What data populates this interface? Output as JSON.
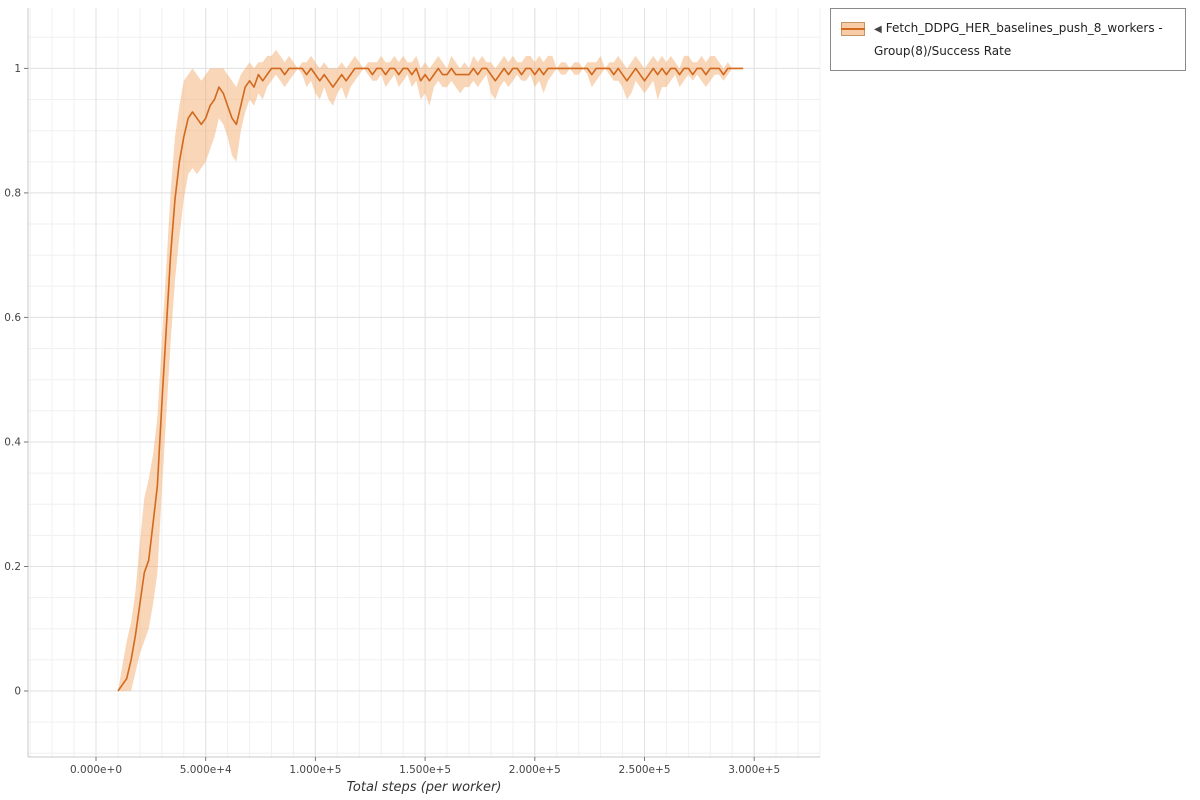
{
  "page": {
    "background": "#ffffff"
  },
  "legend": {
    "collapse_icon": "◀",
    "items": [
      {
        "label": "Fetch_DDPG_HER_baselines_push_8_workers - Group(8)/Success Rate",
        "line_color": "#d2691e",
        "band_color": "#f0a35f"
      }
    ]
  },
  "chart_data": {
    "type": "line",
    "title": "",
    "xlabel": "Total steps (per worker)",
    "ylabel": "",
    "legend_position": "outside-top-right",
    "grid": {
      "on": true,
      "minor_color": "#f0f0f0",
      "major_color": "#e2e2e2"
    },
    "x_axis": {
      "label": "Total steps (per worker)",
      "range": [
        -31000,
        330000
      ],
      "minor_step": 10000,
      "ticks": [
        {
          "v": 0,
          "label": "0.000e+0"
        },
        {
          "v": 50000,
          "label": "5.000e+4"
        },
        {
          "v": 100000,
          "label": "1.000e+5"
        },
        {
          "v": 150000,
          "label": "1.500e+5"
        },
        {
          "v": 200000,
          "label": "2.000e+5"
        },
        {
          "v": 250000,
          "label": "2.500e+5"
        },
        {
          "v": 300000,
          "label": "3.000e+5"
        }
      ]
    },
    "y_axis": {
      "label": "",
      "range": [
        -0.106,
        1.097
      ],
      "minor_step": 0.05,
      "ticks": [
        {
          "v": 0,
          "label": "0"
        },
        {
          "v": 0.2,
          "label": "0.2"
        },
        {
          "v": 0.4,
          "label": "0.4"
        },
        {
          "v": 0.6,
          "label": "0.6"
        },
        {
          "v": 0.8,
          "label": "0.8"
        },
        {
          "v": 1,
          "label": "1"
        }
      ]
    },
    "series": [
      {
        "name": "Fetch_DDPG_HER_baselines_push_8_workers - Group(8)/Success Rate",
        "color": "#d2691e",
        "band_color": "#f0a35f",
        "band_opacity": 0.45,
        "points_format": [
          "x",
          "mean",
          "band_low",
          "band_high"
        ],
        "points": [
          [
            10000,
            0.0,
            0.0,
            0.0
          ],
          [
            12000,
            0.01,
            0.0,
            0.04
          ],
          [
            14000,
            0.02,
            0.0,
            0.08
          ],
          [
            16000,
            0.05,
            0.0,
            0.11
          ],
          [
            18000,
            0.09,
            0.03,
            0.16
          ],
          [
            20000,
            0.14,
            0.06,
            0.24
          ],
          [
            22000,
            0.19,
            0.08,
            0.31
          ],
          [
            24000,
            0.21,
            0.1,
            0.34
          ],
          [
            26000,
            0.27,
            0.14,
            0.38
          ],
          [
            28000,
            0.33,
            0.19,
            0.44
          ],
          [
            30000,
            0.46,
            0.32,
            0.56
          ],
          [
            32000,
            0.58,
            0.44,
            0.68
          ],
          [
            34000,
            0.7,
            0.56,
            0.8
          ],
          [
            36000,
            0.79,
            0.66,
            0.89
          ],
          [
            38000,
            0.85,
            0.73,
            0.94
          ],
          [
            40000,
            0.89,
            0.79,
            0.98
          ],
          [
            42000,
            0.92,
            0.83,
            0.99
          ],
          [
            44000,
            0.93,
            0.84,
            1.0
          ],
          [
            46000,
            0.92,
            0.83,
            0.99
          ],
          [
            48000,
            0.91,
            0.84,
            0.98
          ],
          [
            50000,
            0.92,
            0.85,
            0.99
          ],
          [
            52000,
            0.94,
            0.87,
            1.0
          ],
          [
            54000,
            0.95,
            0.89,
            1.0
          ],
          [
            56000,
            0.97,
            0.92,
            1.0
          ],
          [
            58000,
            0.96,
            0.91,
            1.0
          ],
          [
            60000,
            0.94,
            0.89,
            0.99
          ],
          [
            62000,
            0.92,
            0.86,
            0.98
          ],
          [
            64000,
            0.91,
            0.85,
            0.97
          ],
          [
            66000,
            0.94,
            0.9,
            0.99
          ],
          [
            68000,
            0.97,
            0.93,
            1.0
          ],
          [
            70000,
            0.98,
            0.95,
            1.01
          ],
          [
            72000,
            0.97,
            0.94,
            1.0
          ],
          [
            74000,
            0.99,
            0.96,
            1.01
          ],
          [
            76000,
            0.98,
            0.95,
            1.01
          ],
          [
            78000,
            0.99,
            0.97,
            1.02
          ],
          [
            80000,
            1.0,
            0.98,
            1.02
          ],
          [
            82000,
            1.0,
            0.99,
            1.03
          ],
          [
            84000,
            1.0,
            0.98,
            1.02
          ],
          [
            86000,
            0.99,
            0.97,
            1.01
          ],
          [
            88000,
            1.0,
            0.98,
            1.02
          ],
          [
            90000,
            1.0,
            0.99,
            1.01
          ],
          [
            92000,
            1.0,
            1.0,
            1.0
          ],
          [
            94000,
            1.0,
            0.99,
            1.01
          ],
          [
            96000,
            0.99,
            0.97,
            1.01
          ],
          [
            98000,
            1.0,
            0.98,
            1.02
          ],
          [
            100000,
            0.99,
            0.96,
            1.01
          ],
          [
            102000,
            0.98,
            0.95,
            1.0
          ],
          [
            104000,
            0.99,
            0.97,
            1.01
          ],
          [
            106000,
            0.98,
            0.95,
            1.0
          ],
          [
            108000,
            0.97,
            0.94,
            1.0
          ],
          [
            110000,
            0.98,
            0.96,
            1.0
          ],
          [
            112000,
            0.99,
            0.97,
            1.01
          ],
          [
            114000,
            0.98,
            0.95,
            1.0
          ],
          [
            116000,
            0.99,
            0.97,
            1.01
          ],
          [
            118000,
            1.0,
            0.98,
            1.02
          ],
          [
            120000,
            1.0,
            0.99,
            1.01
          ],
          [
            122000,
            1.0,
            1.0,
            1.0
          ],
          [
            124000,
            1.0,
            0.99,
            1.01
          ],
          [
            126000,
            0.99,
            0.98,
            1.01
          ],
          [
            128000,
            1.0,
            0.98,
            1.01
          ],
          [
            130000,
            1.0,
            0.99,
            1.02
          ],
          [
            132000,
            0.99,
            0.97,
            1.01
          ],
          [
            134000,
            1.0,
            0.98,
            1.01
          ],
          [
            136000,
            1.0,
            0.99,
            1.02
          ],
          [
            138000,
            0.99,
            0.97,
            1.01
          ],
          [
            140000,
            1.0,
            0.98,
            1.02
          ],
          [
            142000,
            1.0,
            0.99,
            1.01
          ],
          [
            144000,
            0.99,
            0.97,
            1.01
          ],
          [
            146000,
            1.0,
            0.98,
            1.02
          ],
          [
            148000,
            0.98,
            0.95,
            1.0
          ],
          [
            150000,
            0.99,
            0.96,
            1.01
          ],
          [
            152000,
            0.98,
            0.94,
            1.0
          ],
          [
            154000,
            0.99,
            0.97,
            1.01
          ],
          [
            156000,
            1.0,
            0.98,
            1.02
          ],
          [
            158000,
            0.99,
            0.97,
            1.01
          ],
          [
            160000,
            0.99,
            0.97,
            1.0
          ],
          [
            162000,
            1.0,
            0.98,
            1.02
          ],
          [
            164000,
            0.99,
            0.97,
            1.01
          ],
          [
            166000,
            0.99,
            0.96,
            1.0
          ],
          [
            168000,
            0.99,
            0.97,
            1.01
          ],
          [
            170000,
            0.99,
            0.97,
            1.0
          ],
          [
            172000,
            1.0,
            0.98,
            1.02
          ],
          [
            174000,
            0.99,
            0.97,
            1.01
          ],
          [
            176000,
            1.0,
            0.98,
            1.02
          ],
          [
            178000,
            1.0,
            0.99,
            1.01
          ],
          [
            180000,
            0.99,
            0.96,
            1.01
          ],
          [
            182000,
            0.98,
            0.95,
            1.0
          ],
          [
            184000,
            0.99,
            0.97,
            1.01
          ],
          [
            186000,
            1.0,
            0.98,
            1.02
          ],
          [
            188000,
            0.99,
            0.97,
            1.01
          ],
          [
            190000,
            1.0,
            0.98,
            1.02
          ],
          [
            192000,
            1.0,
            0.99,
            1.01
          ],
          [
            194000,
            0.99,
            0.98,
            1.01
          ],
          [
            196000,
            1.0,
            0.98,
            1.02
          ],
          [
            198000,
            1.0,
            0.99,
            1.02
          ],
          [
            200000,
            0.99,
            0.97,
            1.01
          ],
          [
            202000,
            1.0,
            0.98,
            1.02
          ],
          [
            204000,
            0.99,
            0.96,
            1.01
          ],
          [
            206000,
            1.0,
            0.98,
            1.02
          ],
          [
            208000,
            1.0,
            0.99,
            1.02
          ],
          [
            210000,
            1.0,
            1.0,
            1.0
          ],
          [
            212000,
            1.0,
            0.99,
            1.01
          ],
          [
            214000,
            1.0,
            0.99,
            1.01
          ],
          [
            216000,
            1.0,
            1.0,
            1.0
          ],
          [
            218000,
            1.0,
            0.99,
            1.01
          ],
          [
            220000,
            1.0,
            0.99,
            1.01
          ],
          [
            222000,
            1.0,
            1.0,
            1.0
          ],
          [
            224000,
            1.0,
            0.99,
            1.01
          ],
          [
            226000,
            0.99,
            0.97,
            1.01
          ],
          [
            228000,
            1.0,
            0.98,
            1.01
          ],
          [
            230000,
            1.0,
            0.99,
            1.02
          ],
          [
            232000,
            1.0,
            1.0,
            1.0
          ],
          [
            234000,
            1.0,
            0.99,
            1.01
          ],
          [
            236000,
            0.99,
            0.98,
            1.01
          ],
          [
            238000,
            1.0,
            0.98,
            1.02
          ],
          [
            240000,
            0.99,
            0.97,
            1.01
          ],
          [
            242000,
            0.98,
            0.95,
            1.0
          ],
          [
            244000,
            0.99,
            0.96,
            1.01
          ],
          [
            246000,
            1.0,
            0.98,
            1.02
          ],
          [
            248000,
            0.99,
            0.97,
            1.01
          ],
          [
            250000,
            0.98,
            0.96,
            1.0
          ],
          [
            252000,
            0.99,
            0.97,
            1.01
          ],
          [
            254000,
            1.0,
            0.98,
            1.02
          ],
          [
            256000,
            0.99,
            0.95,
            1.01
          ],
          [
            258000,
            1.0,
            0.97,
            1.02
          ],
          [
            260000,
            0.99,
            0.97,
            1.01
          ],
          [
            262000,
            1.0,
            0.98,
            1.02
          ],
          [
            264000,
            1.0,
            0.99,
            1.01
          ],
          [
            266000,
            0.99,
            0.97,
            1.0
          ],
          [
            268000,
            1.0,
            0.98,
            1.02
          ],
          [
            270000,
            1.0,
            0.99,
            1.02
          ],
          [
            272000,
            0.99,
            0.98,
            1.01
          ],
          [
            274000,
            1.0,
            0.99,
            1.01
          ],
          [
            276000,
            1.0,
            0.98,
            1.02
          ],
          [
            278000,
            0.99,
            0.97,
            1.01
          ],
          [
            280000,
            1.0,
            0.98,
            1.02
          ],
          [
            282000,
            1.0,
            0.99,
            1.02
          ],
          [
            284000,
            1.0,
            0.99,
            1.01
          ],
          [
            286000,
            0.99,
            0.98,
            1.0
          ],
          [
            288000,
            1.0,
            0.99,
            1.01
          ],
          [
            290000,
            1.0,
            1.0,
            1.0
          ],
          [
            292000,
            1.0,
            1.0,
            1.0
          ],
          [
            295000,
            1.0,
            1.0,
            1.0
          ]
        ]
      }
    ]
  }
}
